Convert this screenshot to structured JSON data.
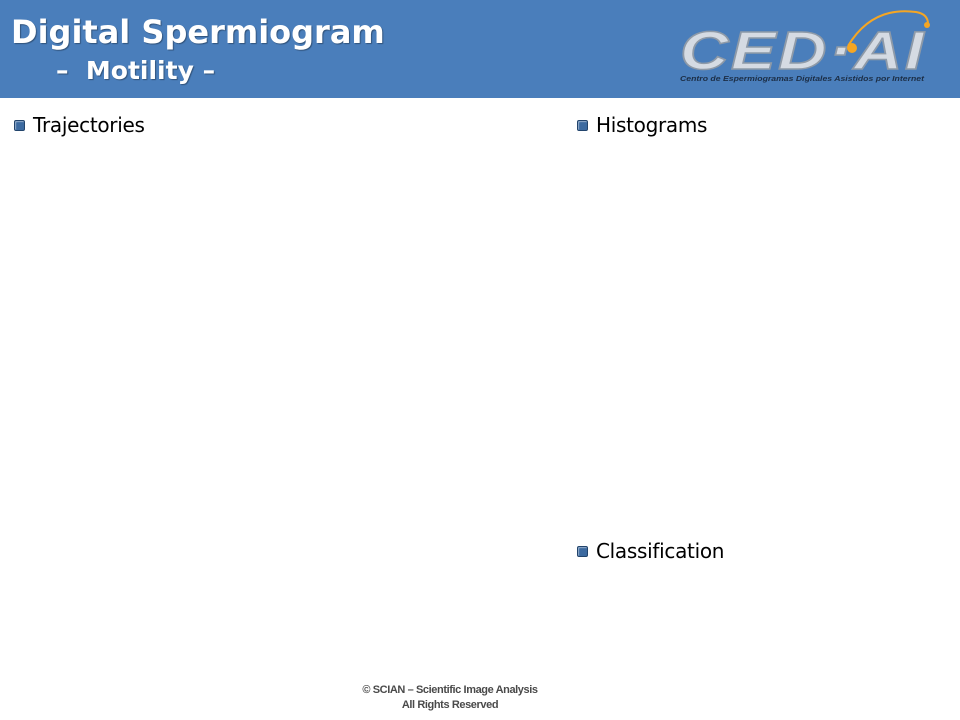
{
  "header": {
    "title": "Digital Spermiogram",
    "subtitle": "–  Motility –",
    "logo": {
      "text": "CED·AI",
      "tagline": "Centro de Espermiogramas Digitales Asistidos por Internet"
    },
    "colors": {
      "background": "#4a7ebb",
      "title": "#ffffff",
      "logo_accent": "#f5a623"
    }
  },
  "sections": {
    "trajectories": "Trajectories",
    "histograms": "Histograms",
    "classification": "Classification"
  },
  "footer": {
    "line1": "© SCIAN – Scientific Image Analysis",
    "line2": "All Rights Reserved"
  }
}
